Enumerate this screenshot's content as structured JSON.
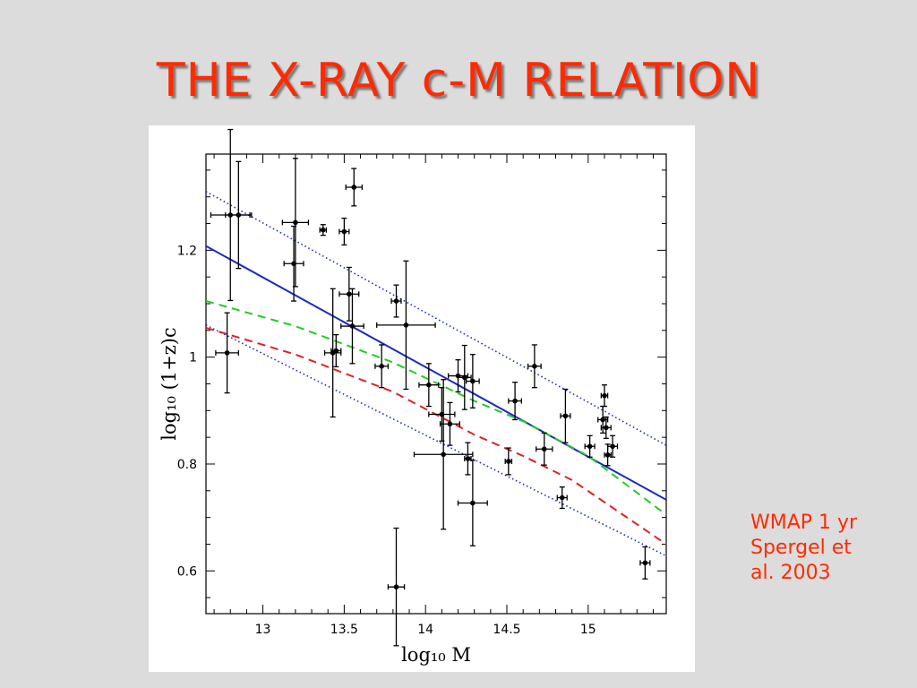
{
  "slide": {
    "title": "THE X-RAY c-M RELATION",
    "note_lines": [
      "WMAP 1 yr",
      "Spergel et",
      "al. 2003"
    ]
  },
  "colors": {
    "title": "#ff2a00",
    "note": "#ff2a00",
    "background": "#dcdcdc",
    "data_points": "#000000",
    "best_fit": "#1a2bc0",
    "dotted_bounds": "#1a2bc0",
    "wmap_model": "#22cc22",
    "alt_model": "#e02020"
  },
  "chart_data": {
    "type": "scatter",
    "title": "",
    "xlabel": "log₁₀ M",
    "ylabel": "log₁₀ (1+z)c",
    "xlim": [
      12.65,
      15.48
    ],
    "ylim": [
      0.52,
      1.38
    ],
    "x_ticks": [
      13,
      13.5,
      14,
      14.5,
      15
    ],
    "x_tick_labels": [
      "13",
      "13.5",
      "14",
      "14.5",
      "15"
    ],
    "y_ticks": [
      0.6,
      0.8,
      1,
      1.2
    ],
    "y_tick_labels": [
      "0.6",
      "0.8",
      "1",
      "1.2"
    ],
    "grid": false,
    "points": [
      {
        "x": 12.8,
        "y": 1.266,
        "xerr": 0.12,
        "yerr": 0.16
      },
      {
        "x": 12.85,
        "y": 1.266,
        "xerr": 0.08,
        "yerr": 0.1
      },
      {
        "x": 12.78,
        "y": 1.008,
        "xerr": 0.07,
        "yerr": 0.075
      },
      {
        "x": 13.2,
        "y": 1.252,
        "xerr": 0.08,
        "yerr": 0.12
      },
      {
        "x": 13.19,
        "y": 1.175,
        "xerr": 0.06,
        "yerr": 0.07
      },
      {
        "x": 13.37,
        "y": 1.238,
        "xerr": 0.02,
        "yerr": 0.01
      },
      {
        "x": 13.5,
        "y": 1.235,
        "xerr": 0.03,
        "yerr": 0.025
      },
      {
        "x": 13.56,
        "y": 1.318,
        "xerr": 0.05,
        "yerr": 0.035
      },
      {
        "x": 13.53,
        "y": 1.118,
        "xerr": 0.06,
        "yerr": 0.05
      },
      {
        "x": 13.55,
        "y": 1.058,
        "xerr": 0.07,
        "yerr": 0.07
      },
      {
        "x": 13.43,
        "y": 1.008,
        "xerr": 0.05,
        "yerr": 0.12
      },
      {
        "x": 13.45,
        "y": 1.012,
        "xerr": 0.03,
        "yerr": 0.03
      },
      {
        "x": 13.73,
        "y": 0.983,
        "xerr": 0.04,
        "yerr": 0.04
      },
      {
        "x": 13.82,
        "y": 1.105,
        "xerr": 0.03,
        "yerr": 0.03
      },
      {
        "x": 13.88,
        "y": 1.06,
        "xerr": 0.18,
        "yerr": 0.12
      },
      {
        "x": 14.02,
        "y": 0.948,
        "xerr": 0.06,
        "yerr": 0.04
      },
      {
        "x": 14.1,
        "y": 0.893,
        "xerr": 0.08,
        "yerr": 0.05
      },
      {
        "x": 14.11,
        "y": 0.818,
        "xerr": 0.18,
        "yerr": 0.14
      },
      {
        "x": 14.15,
        "y": 0.875,
        "xerr": 0.06,
        "yerr": 0.04
      },
      {
        "x": 14.2,
        "y": 0.965,
        "xerr": 0.06,
        "yerr": 0.03
      },
      {
        "x": 14.24,
        "y": 0.962,
        "xerr": 0.04,
        "yerr": 0.06
      },
      {
        "x": 14.29,
        "y": 0.955,
        "xerr": 0.04,
        "yerr": 0.05
      },
      {
        "x": 14.26,
        "y": 0.81,
        "xerr": 0.02,
        "yerr": 0.03
      },
      {
        "x": 14.29,
        "y": 0.727,
        "xerr": 0.09,
        "yerr": 0.08
      },
      {
        "x": 14.51,
        "y": 0.805,
        "xerr": 0.02,
        "yerr": 0.025
      },
      {
        "x": 14.55,
        "y": 0.918,
        "xerr": 0.04,
        "yerr": 0.035
      },
      {
        "x": 14.67,
        "y": 0.983,
        "xerr": 0.04,
        "yerr": 0.04
      },
      {
        "x": 14.73,
        "y": 0.828,
        "xerr": 0.05,
        "yerr": 0.03
      },
      {
        "x": 14.84,
        "y": 0.737,
        "xerr": 0.03,
        "yerr": 0.02
      },
      {
        "x": 14.86,
        "y": 0.89,
        "xerr": 0.03,
        "yerr": 0.05
      },
      {
        "x": 15.01,
        "y": 0.833,
        "xerr": 0.03,
        "yerr": 0.02
      },
      {
        "x": 15.1,
        "y": 0.928,
        "xerr": 0.02,
        "yerr": 0.02
      },
      {
        "x": 15.09,
        "y": 0.883,
        "xerr": 0.03,
        "yerr": 0.025
      },
      {
        "x": 15.11,
        "y": 0.868,
        "xerr": 0.03,
        "yerr": 0.02
      },
      {
        "x": 15.12,
        "y": 0.817,
        "xerr": 0.02,
        "yerr": 0.02
      },
      {
        "x": 15.15,
        "y": 0.833,
        "xerr": 0.03,
        "yerr": 0.02
      },
      {
        "x": 15.35,
        "y": 0.615,
        "xerr": 0.03,
        "yerr": 0.03
      },
      {
        "x": 13.82,
        "y": 0.57,
        "xerr": 0.05,
        "yerr": 0.11
      }
    ],
    "lines": [
      {
        "style": "solid",
        "color": "#1a2bc0",
        "x": [
          12.65,
          15.48
        ],
        "y": [
          1.208,
          0.733
        ]
      },
      {
        "style": "dotted",
        "color": "#1a2bc0",
        "x": [
          12.65,
          15.48
        ],
        "y": [
          1.31,
          0.835
        ]
      },
      {
        "style": "dotted",
        "color": "#1a2bc0",
        "x": [
          12.65,
          15.48
        ],
        "y": [
          1.06,
          0.628
        ]
      },
      {
        "style": "dashed",
        "color": "#22cc22",
        "x": [
          12.65,
          13.2,
          13.8,
          14.3,
          14.6,
          15.0,
          15.48
        ],
        "y": [
          1.105,
          1.058,
          0.99,
          0.918,
          0.88,
          0.815,
          0.705
        ]
      },
      {
        "style": "dashed",
        "color": "#e02020",
        "x": [
          12.65,
          13.2,
          13.8,
          14.3,
          14.6,
          14.9,
          15.48
        ],
        "y": [
          1.055,
          1.005,
          0.935,
          0.855,
          0.815,
          0.77,
          0.65
        ]
      }
    ]
  }
}
